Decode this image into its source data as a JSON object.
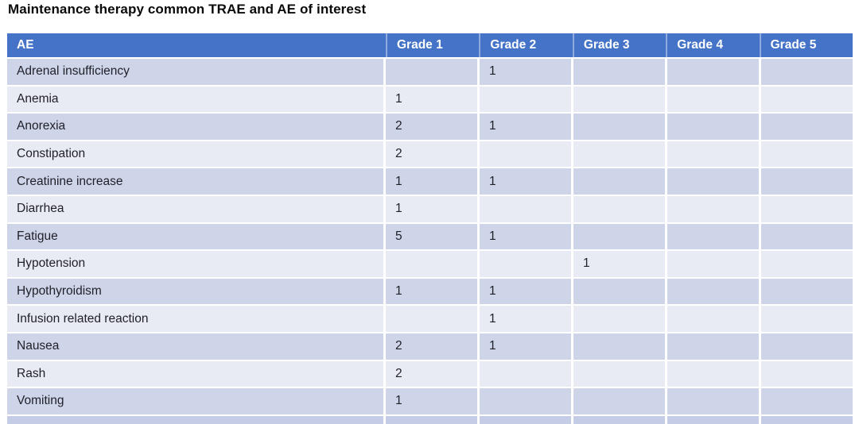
{
  "slide": {
    "title": "Maintenance therapy common TRAE and AE of interest"
  },
  "colors": {
    "header_bg": "#4573C7",
    "band_dark": "#CED5E9",
    "band_light": "#E9EBF4",
    "header_text": "#FFFFFF",
    "cell_text": "#1F1F28"
  },
  "chart_data": {
    "type": "table",
    "title": "Maintenance therapy common TRAE and AE of interest",
    "columns": [
      "AE",
      "Grade 1",
      "Grade 2",
      "Grade 3",
      "Grade 4",
      "Grade 5"
    ],
    "rows": [
      [
        "Adrenal insufficiency",
        "",
        "1",
        "",
        "",
        ""
      ],
      [
        "Anemia",
        "1",
        "",
        "",
        "",
        ""
      ],
      [
        "Anorexia",
        "2",
        "1",
        "",
        "",
        ""
      ],
      [
        "Constipation",
        "2",
        "",
        "",
        "",
        ""
      ],
      [
        "Creatinine increase",
        "1",
        "1",
        "",
        "",
        ""
      ],
      [
        "Diarrhea",
        "1",
        "",
        "",
        "",
        ""
      ],
      [
        "Fatigue",
        "5",
        "1",
        "",
        "",
        ""
      ],
      [
        "Hypotension",
        "",
        "",
        "1",
        "",
        ""
      ],
      [
        "Hypothyroidism",
        "1",
        "1",
        "",
        "",
        ""
      ],
      [
        "Infusion related reaction",
        "",
        "1",
        "",
        "",
        ""
      ],
      [
        "Nausea",
        "2",
        "1",
        "",
        "",
        ""
      ],
      [
        "Rash",
        "2",
        "",
        "",
        "",
        ""
      ],
      [
        "Vomiting",
        "1",
        "",
        "",
        "",
        ""
      ]
    ],
    "layout": {
      "banded_rows": true,
      "header_style": "solid-blue",
      "bottom_row_cutoff": true
    }
  }
}
